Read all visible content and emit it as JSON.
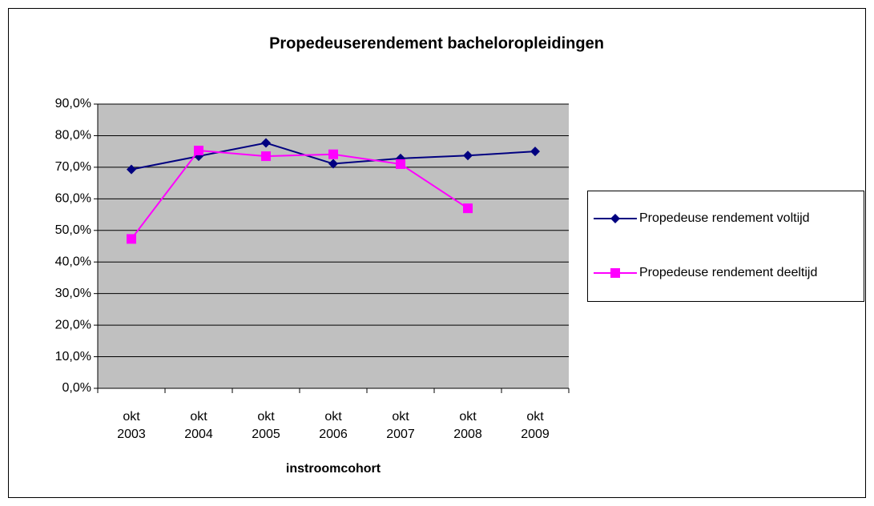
{
  "chart_data": {
    "type": "line",
    "title": "Propedeuserendement bacheloropleidingen",
    "x_label": "instroomcohort",
    "categories": [
      "okt 2003",
      "okt 2004",
      "okt 2005",
      "okt 2006",
      "okt 2007",
      "okt 2008",
      "okt 2009"
    ],
    "series": [
      {
        "name": "Propedeuse rendement voltijd",
        "color": "#000080",
        "marker": "diamond",
        "values": [
          69.3,
          73.5,
          77.7,
          71.1,
          72.8,
          73.7,
          75.0
        ]
      },
      {
        "name": "Propedeuse rendement deeltijd",
        "color": "#ff00ff",
        "marker": "square",
        "values": [
          47.3,
          75.3,
          73.5,
          74.1,
          71.0,
          57.0,
          null
        ]
      }
    ],
    "ylim": [
      0,
      90
    ],
    "yticks": [
      {
        "value": 0,
        "label": "0,0%"
      },
      {
        "value": 10,
        "label": "10,0%"
      },
      {
        "value": 20,
        "label": "20,0%"
      },
      {
        "value": 30,
        "label": "30,0%"
      },
      {
        "value": 40,
        "label": "40,0%"
      },
      {
        "value": 50,
        "label": "50,0%"
      },
      {
        "value": 60,
        "label": "60,0%"
      },
      {
        "value": 70,
        "label": "70,0%"
      },
      {
        "value": 80,
        "label": "80,0%"
      },
      {
        "value": 90,
        "label": "90,0%"
      }
    ],
    "grid": true,
    "plot_background": "#c0c0c0",
    "legend": "right"
  }
}
